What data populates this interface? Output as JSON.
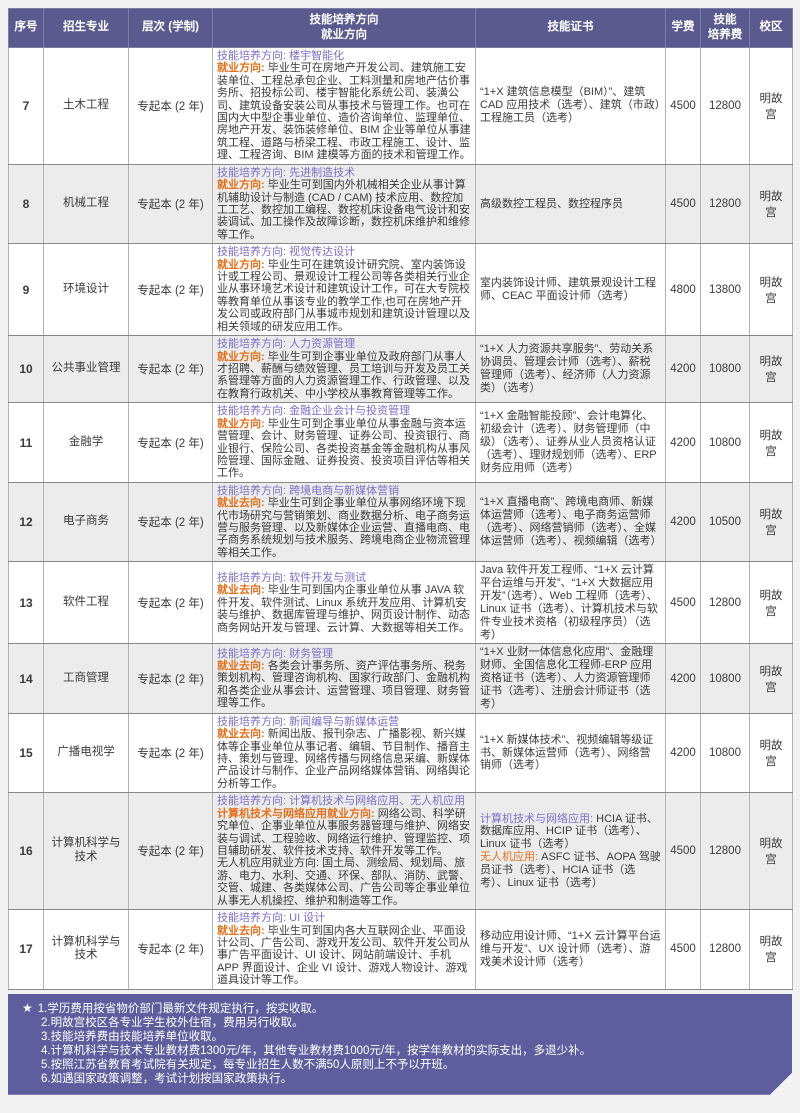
{
  "theme": {
    "header_bg": "#5a5a8e",
    "footer_bg": "#5e5e9e",
    "accent_purple": "#7b6ec6",
    "accent_orange": "#e2711d",
    "row_alt_bg": "#ececec"
  },
  "table": {
    "headers": {
      "no": "序号",
      "major": "招生专业",
      "level": "层次 (学制)",
      "direction1": "技能培养方向",
      "direction2": "就业方向",
      "cert": "技能证书",
      "tuition": "学费",
      "fee1": "技能",
      "fee2": "培养费",
      "campus": "校区"
    },
    "rows": [
      {
        "no": "7",
        "major": "土木工程",
        "level": "专起本 (2 年)",
        "direction_label": "技能培养方向: ",
        "direction": "楼宇智能化",
        "employment_label": "就业方向: ",
        "employment": "毕业生可在房地产开发公司、建筑施工安装单位、工程总承包企业、工料测量和房地产估价事务所、招投标公司、楼宇智能化系统公司、装潢公司、建筑设备安装公司从事技术与管理工作。也可在国内大中型企事业单位、造价咨询单位、监理单位、房地产开发、装饰装修单位、BIM 企业等单位从事建筑工程、道路与桥梁工程、市政工程施工、设计、监理、工程咨询、BIM 建模等方面的技术和管理工作。",
        "certificates": "“1+X 建筑信息模型（BIM）”、建筑 CAD 应用技术（选考）、建筑（市政）工程施工员（选考）",
        "tuition": "4500",
        "skill_fee": "12800",
        "campus": "明故宫"
      },
      {
        "no": "8",
        "major": "机械工程",
        "level": "专起本 (2 年)",
        "direction_label": "技能培养方向: ",
        "direction": "先进制造技术",
        "employment_label": "就业方向: ",
        "employment": "毕业生可到国内外机械相关企业从事计算机辅助设计与制造 (CAD / CAM) 技术应用、数控加工工艺、数控加工编程、数控机床设备电气设计和安装调试、加工操作及故障诊断，数控机床维护和维修等工作。",
        "certificates": "高级数控工程员、数控程序员",
        "tuition": "4500",
        "skill_fee": "12800",
        "campus": "明故宫"
      },
      {
        "no": "9",
        "major": "环境设计",
        "level": "专起本 (2 年)",
        "direction_label": "技能培养方向: ",
        "direction": "视觉传达设计",
        "employment_label": "就业方向: ",
        "employment": "毕业生可在建筑设计研究院、室内装饰设计或工程公司、景观设计工程公司等各类相关行业企业从事环境艺术设计和建筑设计工作，可在大专院校等教育单位从事该专业的教学工作,也可在房地产开发公司或政府部门从事城市规划和建筑设计管理以及相关领域的研发应用工作。",
        "certificates": "室内装饰设计师、建筑景观设计工程师、CEAC 平面设计师（选考）",
        "tuition": "4800",
        "skill_fee": "13800",
        "campus": "明故宫"
      },
      {
        "no": "10",
        "major": "公共事业管理",
        "level": "专起本 (2 年)",
        "direction_label": "技能培养方向: ",
        "direction": "人力资源管理",
        "employment_label": "就业方向: ",
        "employment": "毕业生可到企事业单位及政府部门从事人才招聘、薪酬与绩效管理、员工培训与开发及员工关系管理等方面的人力资源管理工作、行政管理、以及在教育行政机关、中小学校从事教育管理等工作。",
        "certificates": "“1+X 人力资源共享服务”、劳动关系协调员、管理会计师（选考）、薪税管理师（选考）、经济师（人力资源类）（选考）",
        "tuition": "4200",
        "skill_fee": "10800",
        "campus": "明故宫"
      },
      {
        "no": "11",
        "major": "金融学",
        "level": "专起本 (2 年)",
        "direction_label": "技能培养方向: ",
        "direction": "金融企业会计与投资管理",
        "employment_label": "就业方向: ",
        "employment": "毕业生可到企事业单位从事金融与资本运营管理、会计、财务管理、证券公司、投资银行、商业银行、保险公司、各类投资基金等金融机构从事风险管理、国际金融、证券投资、投资项目评估等相关工作。",
        "certificates": "“1+X 金融智能投顾”、会计电算化、初级会计（选考）、财务管理师（中级）（选考）、证券从业人员资格认证（选考）、理财规划师（选考）、ERP 财务应用师（选考）",
        "tuition": "4200",
        "skill_fee": "10800",
        "campus": "明故宫"
      },
      {
        "no": "12",
        "major": "电子商务",
        "level": "专起本 (2 年)",
        "direction_label": "技能培养方向: ",
        "direction": "跨境电商与新媒体营销",
        "employment_label": "就业去向: ",
        "employment": "毕业生可到企事业单位从事网络环境下现代市场研究与营销策划、商业数据分析、电子商务运营与服务管理、以及新媒体企业运营、直播电商、电子商务系统规划与技术服务、跨境电商企业物流管理等相关工作。",
        "certificates": "“1+X 直播电商”、跨境电商师、新媒体运营师（选考）、电子商务运营师（选考）、网络营销师（选考）、全媒体运营师（选考）、视频编辑（选考）",
        "tuition": "4200",
        "skill_fee": "10500",
        "campus": "明故宫"
      },
      {
        "no": "13",
        "major": "软件工程",
        "level": "专起本 (2 年)",
        "direction_label": "技能培养方向: ",
        "direction": "软件开发与测试",
        "employment_label": "就业去向: ",
        "employment": "毕业生可到国内企事业单位从事 JAVA 软件开发、软件测试、Linux 系统开发应用、计算机安装与维护、数据库管理与维护、网页设计制作、动态商务网站开发与管理、云计算、大数据等相关工作。",
        "certificates": "Java 软件开发工程师、“1+X 云计算平台运维与开发”、“1+X 大数据应用开发”（选考）、Web 工程师（选考）、Linux 证书（选考）、计算机技术与软件专业技术资格（初级程序员）（选考）",
        "tuition": "4500",
        "skill_fee": "12800",
        "campus": "明故宫"
      },
      {
        "no": "14",
        "major": "工商管理",
        "level": "专起本 (2 年)",
        "direction_label": "技能培养方向: ",
        "direction": "财务管理",
        "employment_label": "就业去向: ",
        "employment": "各类会计事务所、资产评估事务所、税务策划机构、管理咨询机构、国家行政部门、金融机构和各类企业从事会计、运营管理、项目管理、财务管理等工作。",
        "certificates": "“1+X 业财一体信息化应用”、金融理财师、全国信息化工程师-ERP 应用资格证书（选考）、人力资源管理师证书（选考）、注册会计师证书（选考）",
        "tuition": "4200",
        "skill_fee": "10800",
        "campus": "明故宫"
      },
      {
        "no": "15",
        "major": "广播电视学",
        "level": "专起本 (2 年)",
        "direction_label": "技能培养方向: ",
        "direction": "新闻编导与新媒体运营",
        "employment_label": "就业去向: ",
        "employment": "新闻出版、报刊杂志、广播影视、新兴媒体等企事业单位从事记者、编辑、节目制作、播音主持、策划与管理、网络传播与网络信息采编、新媒体产品设计与制作、企业产品网络媒体营销、网络舆论分析等工作。",
        "certificates": "“1+X 新媒体技术”、视频编辑等级证书、新媒体运营师（选考）、网络营销师（选考）",
        "tuition": "4200",
        "skill_fee": "10800",
        "campus": "明故宫"
      },
      {
        "no": "16",
        "major": "计算机科学与技术",
        "level": "专起本 (2 年)",
        "direction_label": "技能培养方向: ",
        "direction": "计算机技术与网络应用、无人机应用",
        "employment_label": "计算机技术与网络应用就业方向: ",
        "employment": "网络公司、科学研究单位、企事业单位从事服务器管理与维护、网络安装与调试、工程验收、网络运行维护、管理监控、项目辅助研发、软件技术支持、软件开发等工作。",
        "employment2": "无人机应用就业方向: 国土局、测绘局、规划局、旅游、电力、水利、交通、环保、部队、消防、武警、交管、城建、各类媒体公司、广告公司等企事业单位从事无人机操控、维护和制造等工作。",
        "cert_label1": "计算机技术与网络应用: ",
        "certificates1": "HCIA 证书、数据库应用、HCIP 证书（选考）、Linux 证书（选考）",
        "cert_label2": "无人机应用: ",
        "certificates2": "ASFC 证书、AOPA 驾驶员证书（选考）、HCIA 证书（选考）、Linux 证书（选考）",
        "tuition": "4500",
        "skill_fee": "12800",
        "campus": "明故宫"
      },
      {
        "no": "17",
        "major": "计算机科学与技术",
        "level": "专起本 (2 年)",
        "direction_label": "技能培养方向: ",
        "direction": "UI 设计",
        "employment_label": "就业去向: ",
        "employment": "毕业生可到国内各大互联网企业、平面设计公司、广告公司、游戏开发公司、软件开发公司从事广告平面设计、UI 设计、网站前端设计、手机 APP 界面设计、企业 VI 设计、游戏人物设计、游戏道具设计等工作。",
        "certificates": "移动应用设计师、“1+X 云计算平台运维与开发”、UX 设计师（选考）、游戏美术设计师（选考）",
        "tuition": "4500",
        "skill_fee": "12800",
        "campus": "明故宫"
      }
    ]
  },
  "notes": {
    "star": "★",
    "items": [
      "1.学历费用按省物价部门最新文件规定执行，按实收取。",
      "2.明故宫校区各专业学生校外住宿，费用另行收取。",
      "3.技能培养费由技能培养单位收取。",
      "4.计算机科学与技术专业教材费1300元/年，其他专业教材费1000元/年，按学年教材的实际支出，多退少补。",
      "5.按照江苏省教育考试院有关规定，每专业招生人数不满50人原则上不予以开班。",
      "6.如遇国家政策调整，考试计划按国家政策执行。"
    ]
  }
}
